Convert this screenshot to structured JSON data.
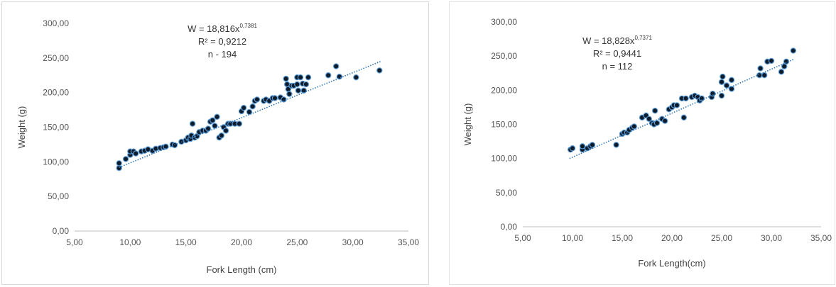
{
  "chart_data": [
    {
      "type": "scatter",
      "xlabel": "Fork Length (cm)",
      "ylabel": "Weight (g)",
      "xlim": [
        5,
        35
      ],
      "ylim": [
        0,
        300
      ],
      "x_ticks": [
        "5,00",
        "10,00",
        "15,00",
        "20,00",
        "25,00",
        "30,00",
        "35,00"
      ],
      "y_ticks": [
        "0,00",
        "50,00",
        "100,00",
        "150,00",
        "200,00",
        "250,00",
        "300,00"
      ],
      "grid": false,
      "annotation": {
        "equation_prefix": "W = 18,816x",
        "equation_exponent": "0,7381",
        "r_squared": "R² = 0,9212",
        "n": "n - 194"
      },
      "trendline": {
        "type": "linear",
        "x": [
          9.0,
          32.5
        ],
        "y": [
          92,
          245
        ]
      },
      "points": [
        [
          9.0,
          91
        ],
        [
          9.0,
          98
        ],
        [
          9.6,
          104
        ],
        [
          10.0,
          110
        ],
        [
          10.0,
          115
        ],
        [
          10.3,
          115
        ],
        [
          10.5,
          112
        ],
        [
          11.0,
          115
        ],
        [
          11.3,
          116
        ],
        [
          11.6,
          118
        ],
        [
          12.0,
          116
        ],
        [
          12.3,
          119
        ],
        [
          12.7,
          120
        ],
        [
          13.0,
          121
        ],
        [
          13.2,
          122
        ],
        [
          13.8,
          125
        ],
        [
          14.0,
          124
        ],
        [
          14.6,
          129
        ],
        [
          15.0,
          131
        ],
        [
          15.2,
          135
        ],
        [
          15.4,
          133
        ],
        [
          15.5,
          138
        ],
        [
          15.6,
          155
        ],
        [
          15.8,
          135
        ],
        [
          16.0,
          137
        ],
        [
          16.2,
          143
        ],
        [
          16.5,
          145
        ],
        [
          16.8,
          145
        ],
        [
          17.0,
          148
        ],
        [
          17.2,
          158
        ],
        [
          17.4,
          160
        ],
        [
          17.6,
          152
        ],
        [
          17.8,
          165
        ],
        [
          18.0,
          135
        ],
        [
          18.2,
          138
        ],
        [
          18.4,
          150
        ],
        [
          18.6,
          145
        ],
        [
          18.8,
          155
        ],
        [
          19.0,
          155
        ],
        [
          19.4,
          155
        ],
        [
          19.8,
          155
        ],
        [
          20.0,
          173
        ],
        [
          20.2,
          178
        ],
        [
          20.7,
          172
        ],
        [
          21.0,
          180
        ],
        [
          21.2,
          188
        ],
        [
          21.4,
          190
        ],
        [
          22.0,
          188
        ],
        [
          22.2,
          190
        ],
        [
          22.5,
          188
        ],
        [
          22.8,
          192
        ],
        [
          23.0,
          192
        ],
        [
          23.5,
          193
        ],
        [
          23.8,
          190
        ],
        [
          24.0,
          220
        ],
        [
          24.1,
          212
        ],
        [
          24.2,
          205
        ],
        [
          24.3,
          198
        ],
        [
          24.5,
          210
        ],
        [
          24.7,
          210
        ],
        [
          25.0,
          222
        ],
        [
          25.0,
          212
        ],
        [
          25.1,
          203
        ],
        [
          25.3,
          222
        ],
        [
          25.5,
          213
        ],
        [
          25.6,
          203
        ],
        [
          25.8,
          212
        ],
        [
          26.0,
          222
        ],
        [
          27.8,
          225
        ],
        [
          28.5,
          238
        ],
        [
          28.8,
          223
        ],
        [
          30.3,
          222
        ],
        [
          32.4,
          232
        ]
      ]
    },
    {
      "type": "scatter",
      "xlabel": "Fork Length(cm)",
      "ylabel": "Weight (g)",
      "xlim": [
        5,
        35
      ],
      "ylim": [
        0,
        300
      ],
      "x_ticks": [
        "5,00",
        "10,00",
        "15,00",
        "20,00",
        "25,00",
        "30,00",
        "35,00"
      ],
      "y_ticks": [
        "0,00",
        "50,00",
        "100,00",
        "150,00",
        "200,00",
        "250,00",
        "300,00"
      ],
      "grid": false,
      "annotation": {
        "equation_prefix": "W = 18,828x",
        "equation_exponent": "0,7371",
        "r_squared": "R² = 0,9441",
        "n": "n = 112"
      },
      "trendline": {
        "type": "linear",
        "x": [
          9.7,
          32.2
        ],
        "y": [
          100,
          245
        ]
      },
      "points": [
        [
          9.8,
          113
        ],
        [
          10.0,
          115
        ],
        [
          11.0,
          113
        ],
        [
          11.0,
          118
        ],
        [
          11.5,
          115
        ],
        [
          11.8,
          118
        ],
        [
          12.0,
          120
        ],
        [
          14.4,
          120
        ],
        [
          15.0,
          136
        ],
        [
          15.2,
          138
        ],
        [
          15.5,
          138
        ],
        [
          15.7,
          142
        ],
        [
          16.0,
          145
        ],
        [
          16.2,
          147
        ],
        [
          17.0,
          160
        ],
        [
          17.4,
          163
        ],
        [
          17.7,
          158
        ],
        [
          18.0,
          152
        ],
        [
          18.2,
          150
        ],
        [
          18.3,
          170
        ],
        [
          18.5,
          152
        ],
        [
          19.0,
          158
        ],
        [
          19.3,
          155
        ],
        [
          19.7,
          172
        ],
        [
          20.0,
          175
        ],
        [
          20.2,
          178
        ],
        [
          20.5,
          178
        ],
        [
          21.0,
          188
        ],
        [
          21.2,
          160
        ],
        [
          21.4,
          188
        ],
        [
          22.0,
          190
        ],
        [
          22.3,
          192
        ],
        [
          22.6,
          190
        ],
        [
          22.8,
          185
        ],
        [
          23.0,
          188
        ],
        [
          24.0,
          190
        ],
        [
          24.1,
          195
        ],
        [
          25.0,
          192
        ],
        [
          25.0,
          212
        ],
        [
          25.1,
          220
        ],
        [
          25.5,
          207
        ],
        [
          26.0,
          202
        ],
        [
          26.0,
          215
        ],
        [
          28.8,
          222
        ],
        [
          28.9,
          232
        ],
        [
          29.3,
          222
        ],
        [
          29.6,
          242
        ],
        [
          30.0,
          243
        ],
        [
          31.0,
          227
        ],
        [
          31.3,
          235
        ],
        [
          31.5,
          242
        ],
        [
          32.2,
          258
        ]
      ]
    }
  ]
}
